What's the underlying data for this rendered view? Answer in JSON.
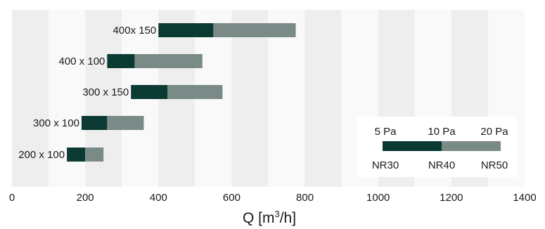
{
  "chart_data": {
    "type": "bar",
    "orientation": "horizontal",
    "stacked": true,
    "categories": [
      "400x 150",
      "400 x 100",
      "300 x 150",
      "300 x 100",
      "200 x 100"
    ],
    "bars": [
      {
        "start": 400,
        "mid": 550,
        "end": 775
      },
      {
        "start": 260,
        "mid": 335,
        "end": 520
      },
      {
        "start": 325,
        "mid": 425,
        "end": 575
      },
      {
        "start": 190,
        "mid": 260,
        "end": 360
      },
      {
        "start": 150,
        "mid": 200,
        "end": 250
      }
    ],
    "xlim": [
      0,
      1400
    ],
    "xticks": [
      0,
      200,
      400,
      600,
      800,
      1000,
      1200,
      1400
    ],
    "xlabel_main": "Q [m",
    "xlabel_sup": "3",
    "xlabel_end": "/h]",
    "grid": "alternating vertical bands every 100",
    "colors": {
      "dark": "#0b3a33",
      "light": "#7a8a86",
      "band_dark": "#eeeeee",
      "band_light": "#f9f9f9"
    },
    "legend": {
      "placement": "bottom-right",
      "top_labels": [
        "5 Pa",
        "10 Pa",
        "20 Pa"
      ],
      "bottom_labels": [
        "NR30",
        "NR40",
        "NR50"
      ]
    }
  }
}
